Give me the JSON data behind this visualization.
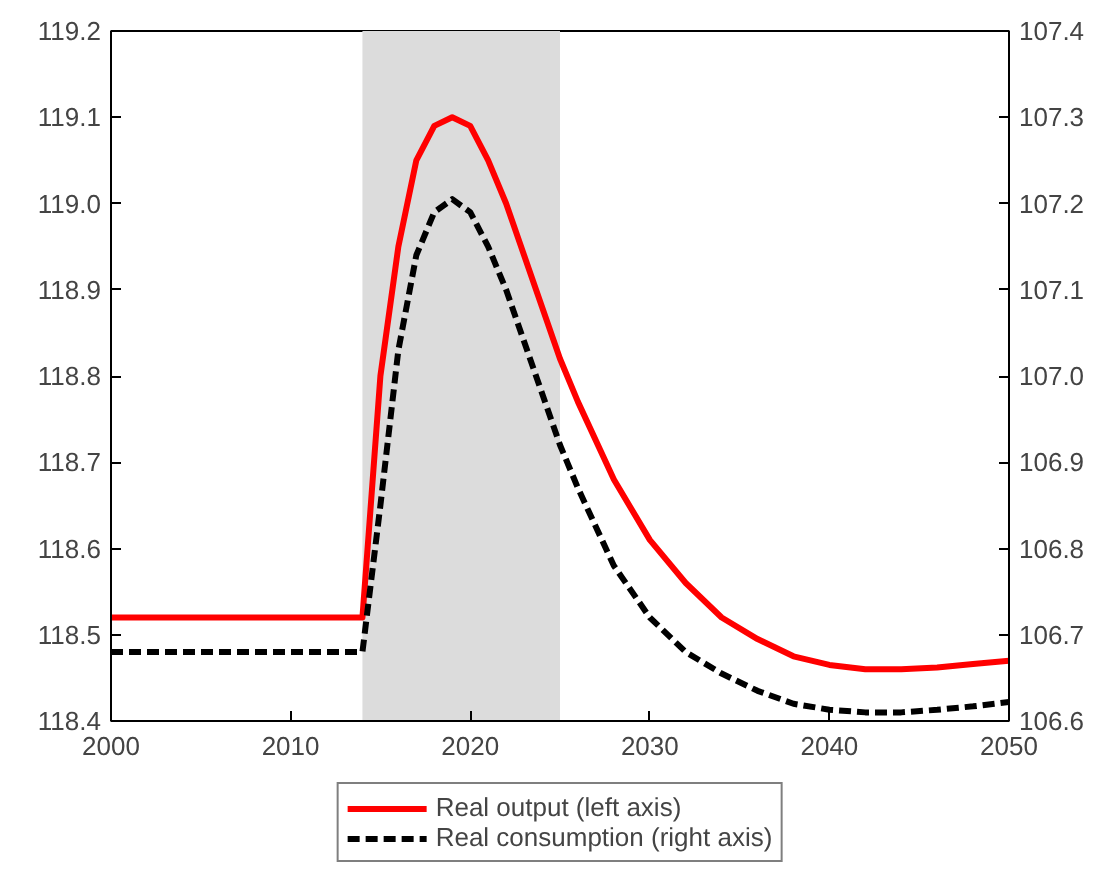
{
  "chart_data": {
    "type": "line",
    "xlim": [
      2000,
      2050
    ],
    "xticks": [
      2000,
      2010,
      2020,
      2030,
      2040,
      2050
    ],
    "ylim": [
      118.4,
      119.2
    ],
    "yticks": [
      118.4,
      118.5,
      118.6,
      118.7,
      118.8,
      118.9,
      {
        "value": 119,
        "label": "119.0"
      },
      119.1,
      119.2
    ],
    "y2lim": [
      106.6,
      107.4
    ],
    "y2ticks": [
      106.6,
      106.7,
      106.8,
      106.9,
      {
        "value": 107,
        "label": "107.0"
      },
      107.1,
      107.2,
      107.3,
      107.4
    ],
    "grid": false,
    "legend": "bottom",
    "marker": "none",
    "x": [
      2000,
      2014,
      2015,
      2016,
      2017,
      2018,
      2019,
      2020,
      2021,
      2022,
      2023,
      2024,
      2025,
      2026,
      2028,
      2030,
      2032,
      2034,
      2036,
      2038,
      2040,
      2042,
      2044,
      2046,
      2048,
      2050
    ],
    "bands": [
      {
        "axis": "x",
        "from": 2014,
        "to": 2025,
        "color": "#dcdcdc"
      }
    ],
    "series": [
      {
        "name": "Real output (left axis)",
        "color": "#ff0000",
        "line_style": "solid",
        "values": [
          118.52,
          118.52,
          118.8,
          118.95,
          119.05,
          119.09,
          119.1,
          119.09,
          119.05,
          119.0,
          118.94,
          118.88,
          118.82,
          118.77,
          118.68,
          118.61,
          118.56,
          118.52,
          118.495,
          118.475,
          118.465,
          118.46,
          118.46,
          118.462,
          118.466,
          118.47
        ]
      },
      {
        "name": "Real consumption (right axis)",
        "color": "#000000",
        "line_style": "dashed",
        "axis": "y2",
        "values": [
          106.68,
          106.68,
          106.85,
          107.03,
          107.14,
          107.19,
          107.205,
          107.19,
          107.15,
          107.1,
          107.04,
          106.98,
          106.92,
          106.87,
          106.78,
          106.72,
          106.68,
          106.655,
          106.635,
          106.62,
          106.613,
          106.61,
          106.61,
          106.613,
          106.617,
          106.622
        ]
      }
    ]
  }
}
